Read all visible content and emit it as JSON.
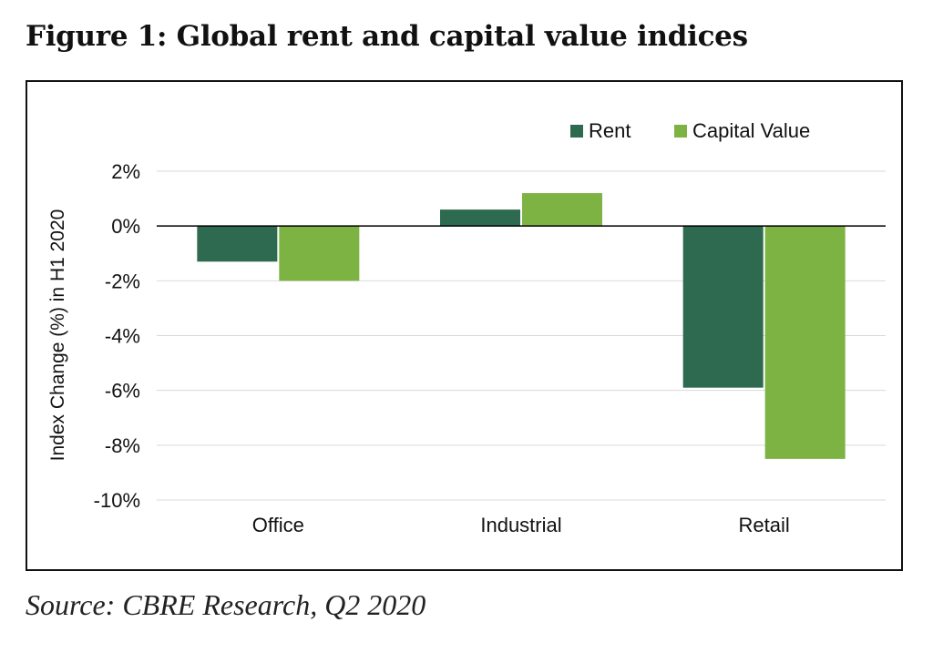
{
  "figure": {
    "title": "Figure 1: Global rent and capital value indices",
    "source": "Source: CBRE Research, Q2 2020"
  },
  "colors": {
    "rent": "#2d6a4f",
    "capital_value": "#7cb342",
    "grid": "#d9d9d9",
    "zero_line": "#000000"
  },
  "chart_data": {
    "type": "bar",
    "title": "",
    "xlabel": "",
    "ylabel": "Index Change (%) in H1 2020",
    "categories": [
      "Office",
      "Industrial",
      "Retail"
    ],
    "series": [
      {
        "name": "Rent",
        "values": [
          -1.3,
          0.6,
          -5.9
        ]
      },
      {
        "name": "Capital Value",
        "values": [
          -2.0,
          1.2,
          -8.5
        ]
      }
    ],
    "ylim": [
      -10,
      2
    ],
    "yticks": [
      2,
      0,
      -2,
      -4,
      -6,
      -8,
      -10
    ],
    "ytick_labels": [
      "2%",
      "0%",
      "-2%",
      "-4%",
      "-6%",
      "-8%",
      "-10%"
    ],
    "grid": true,
    "legend_position": "top-right"
  }
}
